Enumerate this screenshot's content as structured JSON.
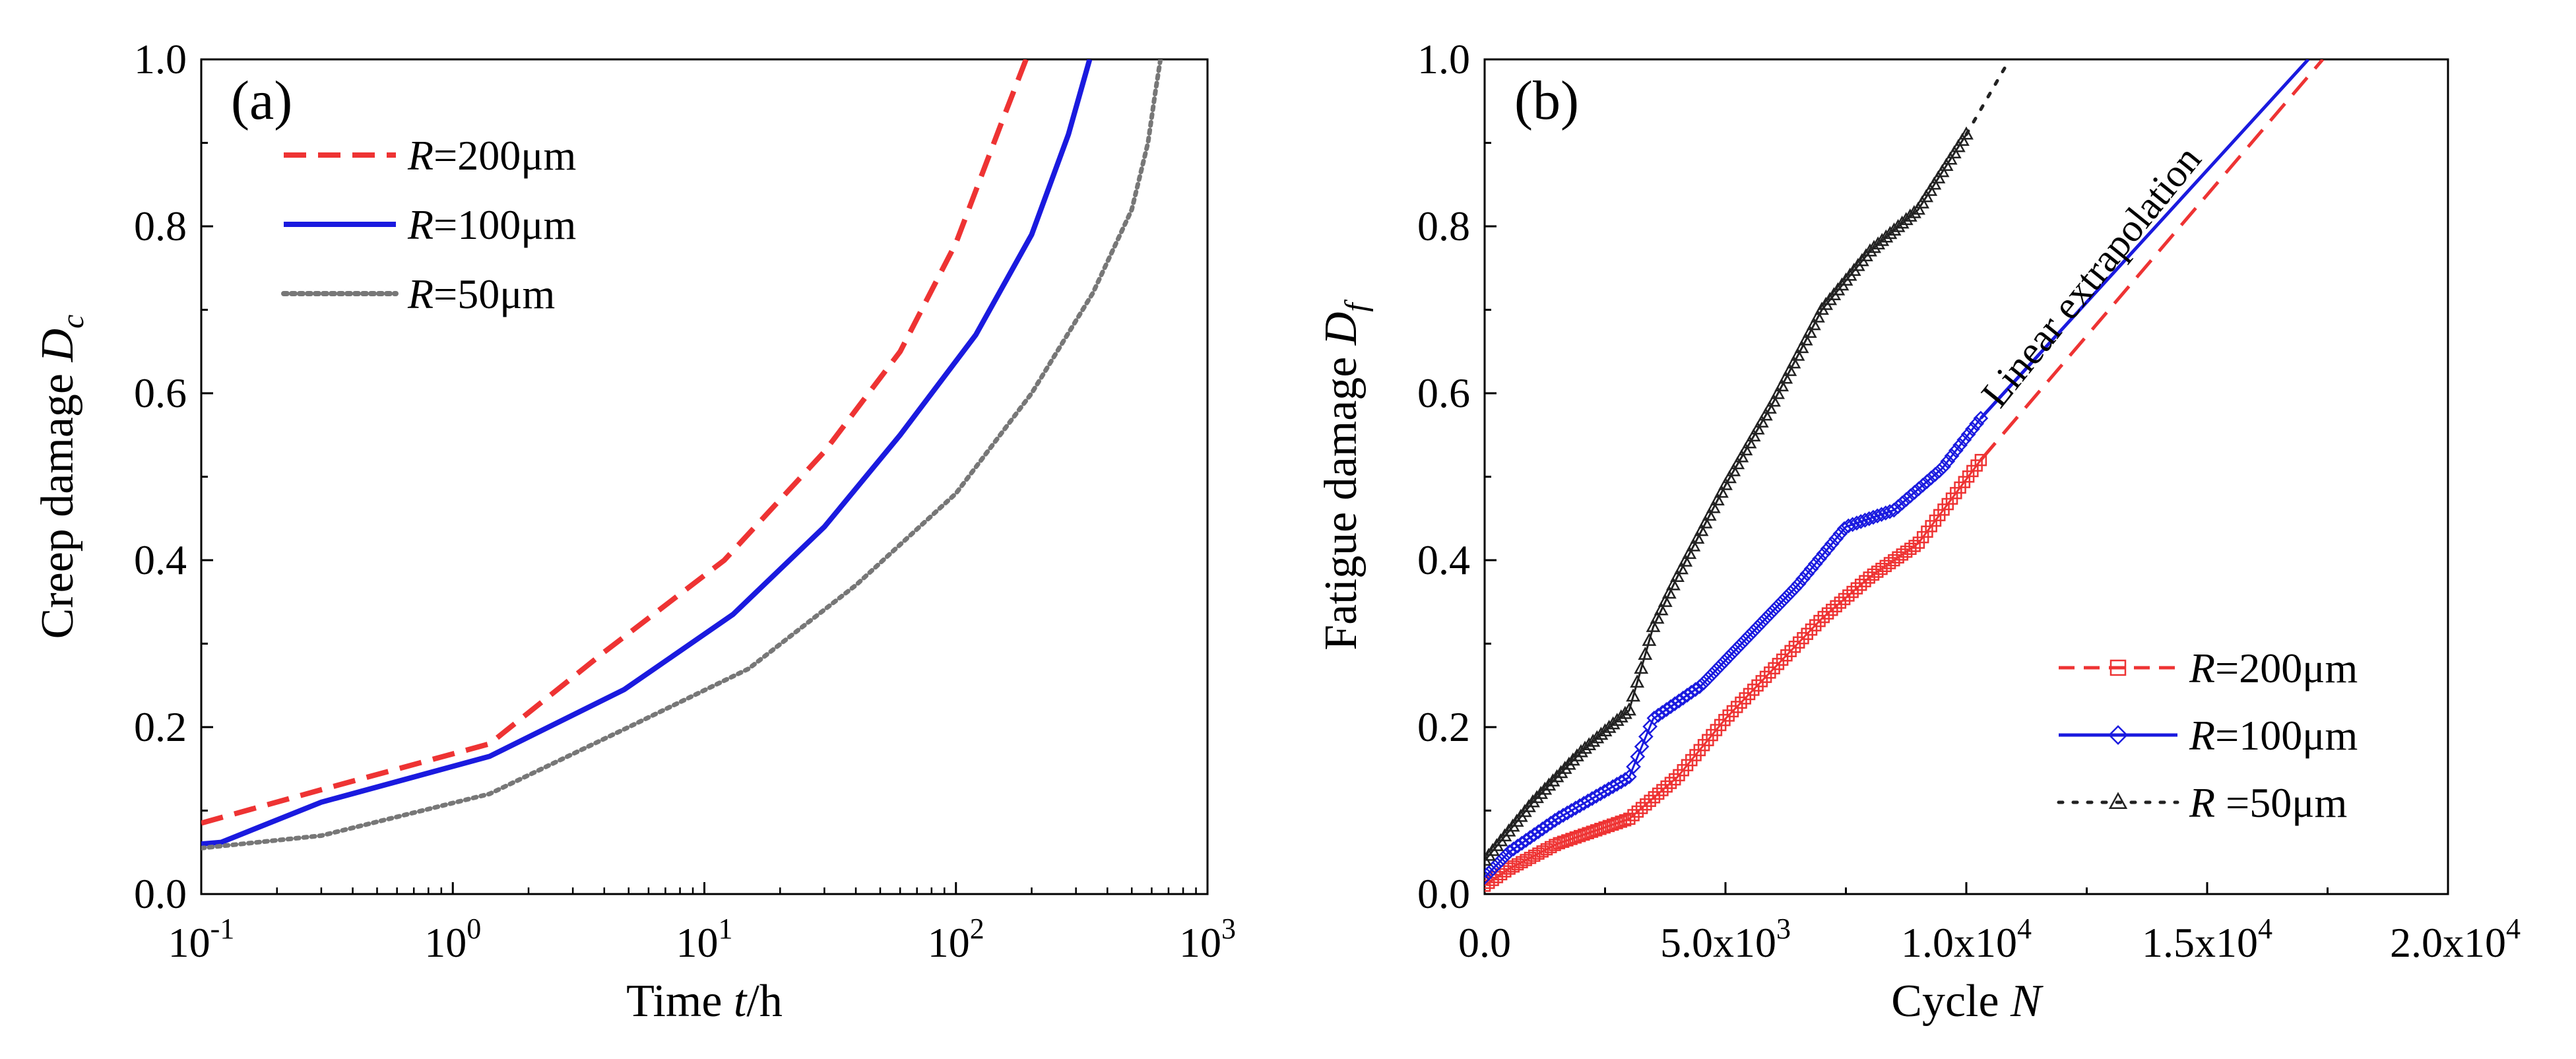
{
  "chart_data": [
    {
      "panel": "(a)",
      "type": "line",
      "xscale": "log",
      "xlim": [
        0.1,
        1000
      ],
      "ylim": [
        0,
        1.0
      ],
      "xlabel": {
        "main": "Time ",
        "var": "t",
        "unit": "/h"
      },
      "ylabel": {
        "main": "Creep damage ",
        "var": "D",
        "sub": "c"
      },
      "xticks": [
        {
          "base": "10",
          "exp": "-1",
          "value": 0.1
        },
        {
          "base": "10",
          "exp": "0",
          "value": 1
        },
        {
          "base": "10",
          "exp": "1",
          "value": 10
        },
        {
          "base": "10",
          "exp": "2",
          "value": 100
        },
        {
          "base": "10",
          "exp": "3",
          "value": 1000
        }
      ],
      "yticks": [
        "0.0",
        "0.2",
        "0.4",
        "0.6",
        "0.8",
        "1.0"
      ],
      "legend_position": "top-left",
      "series": [
        {
          "name": "R=200μm",
          "var": "R",
          "rest": "=200μm",
          "color": "#ee3333",
          "style": "dashed",
          "x": [
            0.1,
            0.3,
            1.4,
            4,
            12,
            30,
            60,
            100,
            150,
            190
          ],
          "y": [
            0.085,
            0.125,
            0.18,
            0.29,
            0.4,
            0.53,
            0.65,
            0.78,
            0.92,
            1.0
          ]
        },
        {
          "name": "R=100μm",
          "var": "R",
          "rest": "=100μm",
          "color": "#1a1adf",
          "style": "solid",
          "x": [
            0.1,
            0.12,
            0.3,
            1.4,
            4.8,
            13,
            30,
            60,
            120,
            200,
            280,
            340
          ],
          "y": [
            0.06,
            0.062,
            0.11,
            0.165,
            0.245,
            0.335,
            0.44,
            0.55,
            0.67,
            0.79,
            0.91,
            1.0
          ]
        },
        {
          "name": "R=50μm",
          "var": "R",
          "rest": "=50μm",
          "color": "#777777",
          "style": "dotted",
          "x": [
            0.1,
            0.3,
            1.4,
            5,
            15,
            40,
            100,
            200,
            350,
            500,
            580,
            620,
            650
          ],
          "y": [
            0.055,
            0.07,
            0.12,
            0.2,
            0.27,
            0.37,
            0.48,
            0.6,
            0.72,
            0.82,
            0.9,
            0.96,
            1.0
          ]
        }
      ]
    },
    {
      "panel": "(b)",
      "type": "line",
      "xscale": "linear",
      "xlim": [
        0,
        20000
      ],
      "ylim": [
        0,
        1.0
      ],
      "xlabel": {
        "main": "Cycle ",
        "var": "N"
      },
      "ylabel": {
        "main": "Fatigue damage ",
        "var": "D",
        "sub": "f"
      },
      "xticks": [
        {
          "mant": "0.0",
          "base": "",
          "exp": "",
          "value": 0
        },
        {
          "mant": "5.0x",
          "base": "10",
          "exp": "3",
          "value": 5000
        },
        {
          "mant": "1.0x",
          "base": "10",
          "exp": "4",
          "value": 10000
        },
        {
          "mant": "1.5x",
          "base": "10",
          "exp": "4",
          "value": 15000
        },
        {
          "mant": "2.0x",
          "base": "10",
          "exp": "4",
          "value": 20000
        }
      ],
      "yticks": [
        "0.0",
        "0.2",
        "0.4",
        "0.6",
        "0.8",
        "1.0"
      ],
      "annotation": "Linear extrapolation",
      "legend_position": "bottom-right",
      "series": [
        {
          "name": "R=200μm",
          "var": "R",
          "rest": "=200μm",
          "color": "#ee3333",
          "marker": "square",
          "line": "dashed",
          "x": [
            0,
            500,
            1500,
            3000,
            4000,
            5000,
            6000,
            7000,
            8000,
            9000,
            10300
          ],
          "y": [
            0.01,
            0.03,
            0.06,
            0.09,
            0.14,
            0.21,
            0.27,
            0.33,
            0.38,
            0.42,
            0.52
          ],
          "extrapolation": {
            "x": [
              10300,
              17400
            ],
            "y": [
              0.52,
              1.0
            ]
          }
        },
        {
          "name": "R=100μm",
          "var": "R",
          "rest": "=100μm",
          "color": "#1a1adf",
          "marker": "diamond",
          "line": "solid",
          "x": [
            0,
            500,
            1500,
            3000,
            3500,
            4500,
            5500,
            6500,
            7500,
            8500,
            9500,
            10300
          ],
          "y": [
            0.02,
            0.05,
            0.09,
            0.14,
            0.21,
            0.25,
            0.31,
            0.37,
            0.44,
            0.46,
            0.51,
            0.57
          ],
          "extrapolation": {
            "x": [
              10300,
              17100
            ],
            "y": [
              0.57,
              1.0
            ]
          }
        },
        {
          "name": "R =50μm",
          "var": "R",
          "rest": " =50μm",
          "color": "#222222",
          "marker": "triangle",
          "line": "dotted",
          "x": [
            0,
            1000,
            2000,
            3000,
            3500,
            4000,
            5000,
            6000,
            7000,
            8000,
            9000,
            10000
          ],
          "y": [
            0.04,
            0.11,
            0.17,
            0.22,
            0.32,
            0.38,
            0.49,
            0.59,
            0.7,
            0.77,
            0.82,
            0.91
          ],
          "extrapolation": {
            "x": [
              10000,
              10800
            ],
            "y": [
              0.91,
              0.99
            ]
          }
        }
      ]
    }
  ]
}
